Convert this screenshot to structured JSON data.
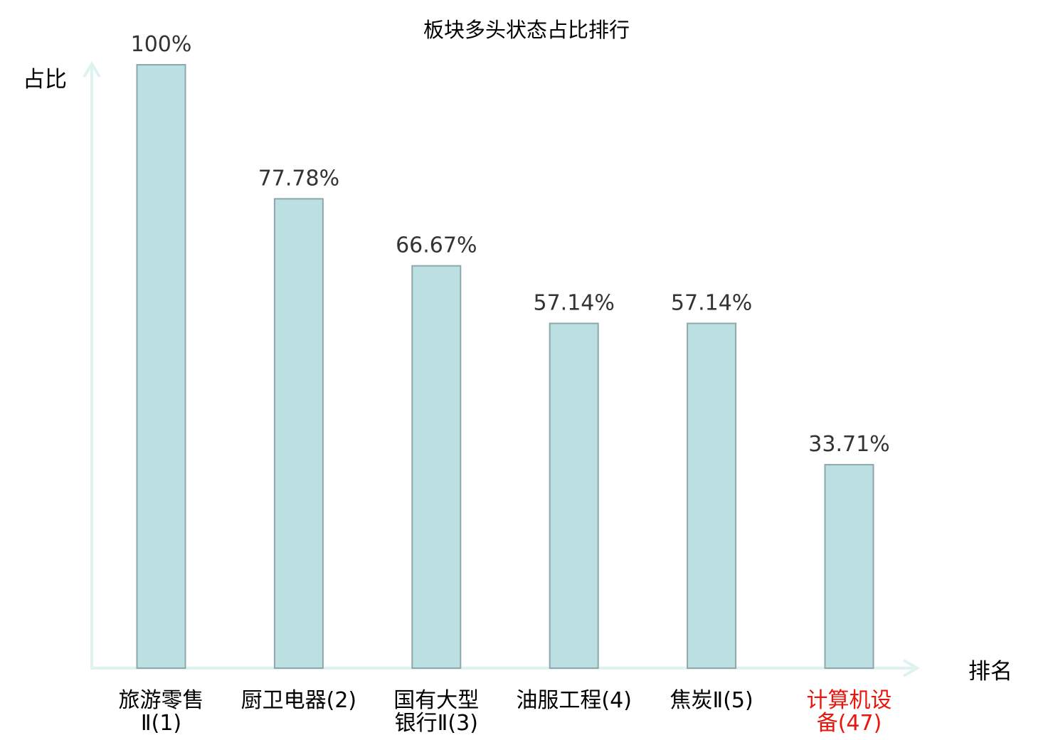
{
  "chart_data": {
    "type": "bar",
    "title": "板块多头状态占比排行",
    "ylabel": "占比",
    "xlabel": "排名",
    "categories": [
      {
        "lines": [
          "旅游零售",
          "Ⅱ(1)"
        ],
        "highlight": false
      },
      {
        "lines": [
          "厨卫电器(2)"
        ],
        "highlight": false
      },
      {
        "lines": [
          "国有大型",
          "银行Ⅱ(3)"
        ],
        "highlight": false
      },
      {
        "lines": [
          "油服工程(4)"
        ],
        "highlight": false
      },
      {
        "lines": [
          "焦炭Ⅱ(5)"
        ],
        "highlight": false
      },
      {
        "lines": [
          "计算机设",
          "备(47)"
        ],
        "highlight": true
      }
    ],
    "values": [
      100,
      77.78,
      66.67,
      57.14,
      57.14,
      33.71
    ],
    "value_labels": [
      "100%",
      "77.78%",
      "66.67%",
      "57.14%",
      "57.14%",
      "33.71%"
    ],
    "ylim": [
      0,
      100
    ],
    "grid": false,
    "colors": {
      "bar_fill": "#bce0e2",
      "bar_stroke": "#8ea7ab",
      "axis": "#def2ef",
      "text": "#333333",
      "label": "#000000",
      "highlight": "#e8160c"
    }
  }
}
